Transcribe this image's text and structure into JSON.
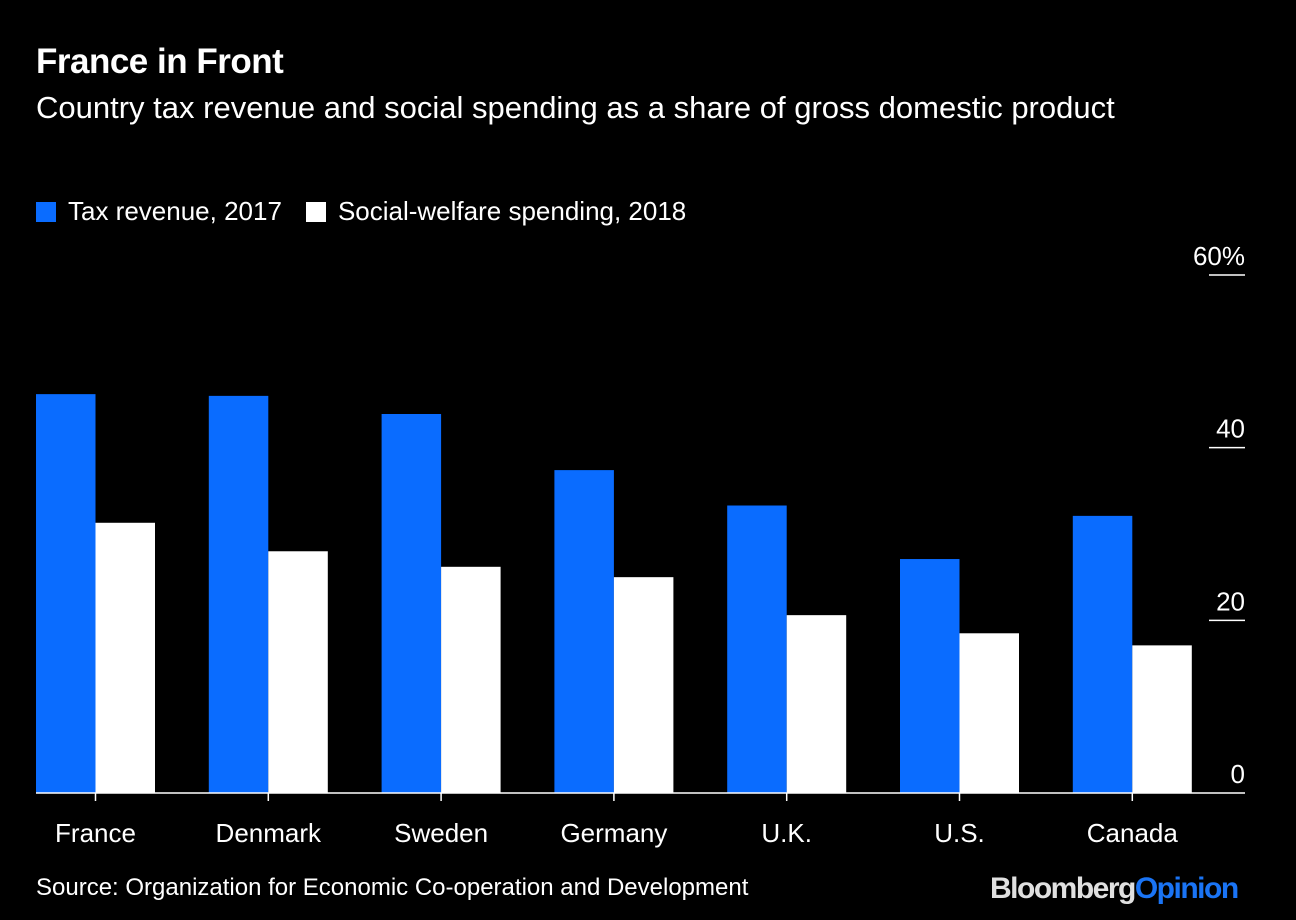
{
  "chart_data": {
    "type": "bar",
    "title": "France in Front",
    "subtitle": "Country tax revenue and social spending as a share of gross domestic product",
    "categories": [
      "France",
      "Denmark",
      "Sweden",
      "Germany",
      "U.K.",
      "U.S.",
      "Canada"
    ],
    "series": [
      {
        "name": "Tax revenue, 2017",
        "color": "#0a6cff",
        "values": [
          46.2,
          46.0,
          43.9,
          37.4,
          33.3,
          27.1,
          32.1
        ]
      },
      {
        "name": "Social-welfare spending, 2018",
        "color": "#ffffff",
        "values": [
          31.3,
          28.0,
          26.2,
          25.0,
          20.6,
          18.5,
          17.1
        ]
      }
    ],
    "ylim": [
      0,
      60
    ],
    "yticks": [
      0,
      20,
      40,
      60
    ],
    "ytick_labels": [
      "0",
      "20",
      "40",
      "60%"
    ],
    "yaxis_position": "right",
    "legend_position": "top-left",
    "grid": false
  },
  "source": "Source: Organization for Economic Co-operation and Development",
  "logo": {
    "part1": "Bloomberg",
    "part2": "Opinion"
  }
}
